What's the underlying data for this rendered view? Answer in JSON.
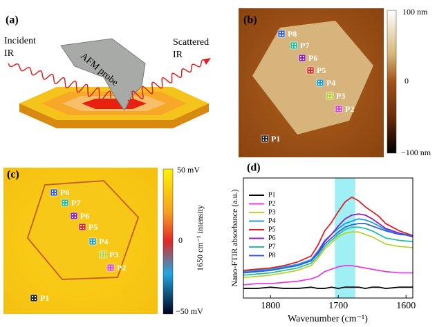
{
  "panel_a": {
    "label": "(a)",
    "incident": [
      "Incident",
      "IR"
    ],
    "scattered": [
      "Scattered",
      "IR"
    ],
    "probe": "AFM probe"
  },
  "panel_b": {
    "label": "(b)",
    "colorbar": [
      "100 nm",
      "0",
      "−100 nm"
    ],
    "points": [
      "P1",
      "P2",
      "P3",
      "P4",
      "P5",
      "P6",
      "P7",
      "P8"
    ]
  },
  "panel_c": {
    "label": "(c)",
    "colorbar": [
      "50 mV",
      "0",
      "−50 mV"
    ],
    "colorbar_title": "1650 cm⁻¹ intensity",
    "points": [
      "P1",
      "P2",
      "P3",
      "P4",
      "P5",
      "P6",
      "P7",
      "P8"
    ]
  },
  "chart_data": {
    "type": "line",
    "label": "(d)",
    "xlabel": "Wavenumber (cm⁻¹)",
    "ylabel": "Nano-FTIR absorbance (a.u.)",
    "x": [
      1840,
      1820,
      1800,
      1780,
      1760,
      1740,
      1730,
      1720,
      1710,
      1700,
      1690,
      1680,
      1670,
      1660,
      1650,
      1640,
      1630,
      1610,
      1590
    ],
    "xlim": [
      1840,
      1590
    ],
    "xticks": [
      1800,
      1700,
      1600
    ],
    "ylim": [
      0,
      1
    ],
    "highlight": [
      1705,
      1675
    ],
    "highlight_color": "#9ef0f4",
    "legend": "upper left",
    "series": [
      {
        "name": "P1",
        "color": "#000000",
        "values": [
          0.08,
          0.08,
          0.09,
          0.08,
          0.08,
          0.09,
          0.08,
          0.08,
          0.09,
          0.08,
          0.09,
          0.09,
          0.09,
          0.08,
          0.09,
          0.09,
          0.08,
          0.09,
          0.09
        ]
      },
      {
        "name": "P2",
        "color": "#e040e0",
        "values": [
          0.11,
          0.12,
          0.12,
          0.13,
          0.14,
          0.16,
          0.18,
          0.22,
          0.24,
          0.26,
          0.27,
          0.27,
          0.26,
          0.25,
          0.24,
          0.23,
          0.22,
          0.21,
          0.21
        ]
      },
      {
        "name": "P3",
        "color": "#b8d432",
        "values": [
          0.17,
          0.18,
          0.19,
          0.21,
          0.23,
          0.27,
          0.33,
          0.41,
          0.46,
          0.51,
          0.54,
          0.55,
          0.55,
          0.53,
          0.51,
          0.48,
          0.45,
          0.43,
          0.42
        ]
      },
      {
        "name": "P4",
        "color": "#1aa0e0",
        "values": [
          0.22,
          0.23,
          0.24,
          0.26,
          0.28,
          0.32,
          0.39,
          0.48,
          0.53,
          0.58,
          0.62,
          0.64,
          0.66,
          0.65,
          0.63,
          0.6,
          0.57,
          0.54,
          0.52
        ]
      },
      {
        "name": "P5",
        "color": "#e02020",
        "values": [
          0.23,
          0.24,
          0.25,
          0.27,
          0.3,
          0.35,
          0.44,
          0.56,
          0.63,
          0.72,
          0.8,
          0.84,
          0.81,
          0.76,
          0.72,
          0.68,
          0.62,
          0.56,
          0.52
        ]
      },
      {
        "name": "P6",
        "color": "#9020c0",
        "values": [
          0.21,
          0.22,
          0.23,
          0.25,
          0.27,
          0.31,
          0.38,
          0.47,
          0.53,
          0.6,
          0.66,
          0.69,
          0.7,
          0.69,
          0.66,
          0.62,
          0.58,
          0.54,
          0.51
        ]
      },
      {
        "name": "P7",
        "color": "#20c0a0",
        "values": [
          0.19,
          0.2,
          0.21,
          0.23,
          0.25,
          0.29,
          0.35,
          0.43,
          0.48,
          0.53,
          0.57,
          0.59,
          0.59,
          0.58,
          0.56,
          0.53,
          0.5,
          0.48,
          0.47
        ]
      },
      {
        "name": "P8",
        "color": "#3060e0",
        "values": [
          0.21,
          0.22,
          0.23,
          0.25,
          0.27,
          0.31,
          0.37,
          0.45,
          0.5,
          0.55,
          0.59,
          0.61,
          0.62,
          0.62,
          0.6,
          0.58,
          0.56,
          0.53,
          0.52
        ]
      }
    ]
  }
}
